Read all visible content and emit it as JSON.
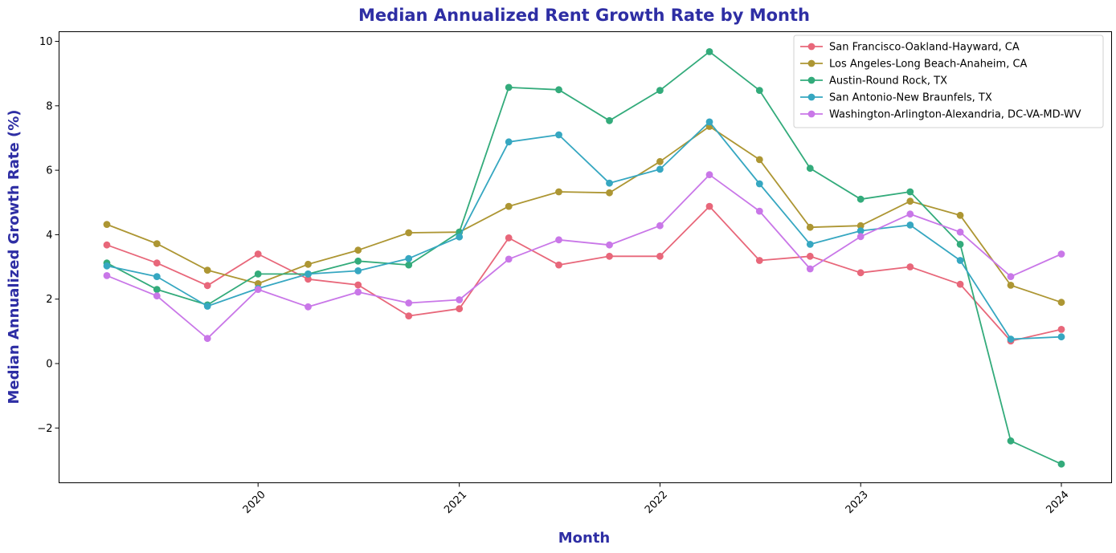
{
  "chart_data": {
    "type": "line",
    "title": "Median Annualized Rent Growth Rate by Month",
    "xlabel": "Month",
    "ylabel": "Median Annualized Growth Rate (%)",
    "x": [
      "2019-04-01",
      "2019-07-01",
      "2019-10-01",
      "2020-01-01",
      "2020-04-01",
      "2020-07-01",
      "2020-10-01",
      "2021-01-01",
      "2021-04-01",
      "2021-07-01",
      "2021-10-01",
      "2022-01-01",
      "2022-04-01",
      "2022-07-01",
      "2022-10-01",
      "2023-01-01",
      "2023-04-01",
      "2023-07-01",
      "2023-10-01",
      "2024-01-01"
    ],
    "x_ticks": [
      "2020",
      "2021",
      "2022",
      "2023",
      "2024"
    ],
    "y_ticks": [
      "−2",
      "0",
      "2",
      "4",
      "6",
      "8",
      "10"
    ],
    "ylim": [
      -3.7,
      10.3
    ],
    "grid": false,
    "legend_position": "top-right",
    "series": [
      {
        "name": "San Francisco-Oakland-Hayward, CA",
        "color": "#e8677a",
        "values": [
          3.68,
          3.12,
          2.42,
          3.4,
          2.62,
          2.44,
          1.48,
          1.7,
          3.9,
          3.06,
          3.33,
          3.33,
          4.88,
          3.2,
          3.33,
          2.82,
          3.0,
          2.46,
          0.7,
          1.06
        ]
      },
      {
        "name": "Los Angeles-Long Beach-Anaheim, CA",
        "color": "#ad9633",
        "values": [
          4.32,
          3.72,
          2.9,
          2.48,
          3.08,
          3.52,
          4.06,
          4.08,
          4.88,
          5.33,
          5.3,
          6.27,
          7.36,
          6.33,
          4.23,
          4.28,
          5.04,
          4.6,
          2.43,
          1.9
        ]
      },
      {
        "name": "Austin-Round Rock, TX",
        "color": "#33ab7b",
        "values": [
          3.12,
          2.3,
          1.82,
          2.78,
          2.78,
          3.18,
          3.06,
          4.08,
          8.57,
          8.5,
          7.54,
          8.48,
          9.68,
          8.48,
          6.06,
          5.1,
          5.33,
          3.7,
          -2.4,
          -3.12
        ]
      },
      {
        "name": "San Antonio-New Braunfels, TX",
        "color": "#36a7c1",
        "values": [
          3.03,
          2.7,
          1.78,
          2.33,
          2.78,
          2.88,
          3.26,
          3.93,
          6.88,
          7.1,
          5.6,
          6.03,
          7.5,
          5.58,
          3.7,
          4.12,
          4.3,
          3.2,
          0.76,
          0.83
        ]
      },
      {
        "name": "Washington-Arlington-Alexandria, DC-VA-MD-WV",
        "color": "#c977e8",
        "values": [
          2.73,
          2.1,
          0.78,
          2.3,
          1.76,
          2.22,
          1.88,
          1.98,
          3.24,
          3.84,
          3.68,
          4.28,
          5.86,
          4.73,
          2.94,
          3.94,
          4.64,
          4.08,
          2.7,
          3.4
        ]
      }
    ],
    "colors": {
      "title": "#2e2ea4",
      "axis_label": "#2e2ea4"
    }
  }
}
